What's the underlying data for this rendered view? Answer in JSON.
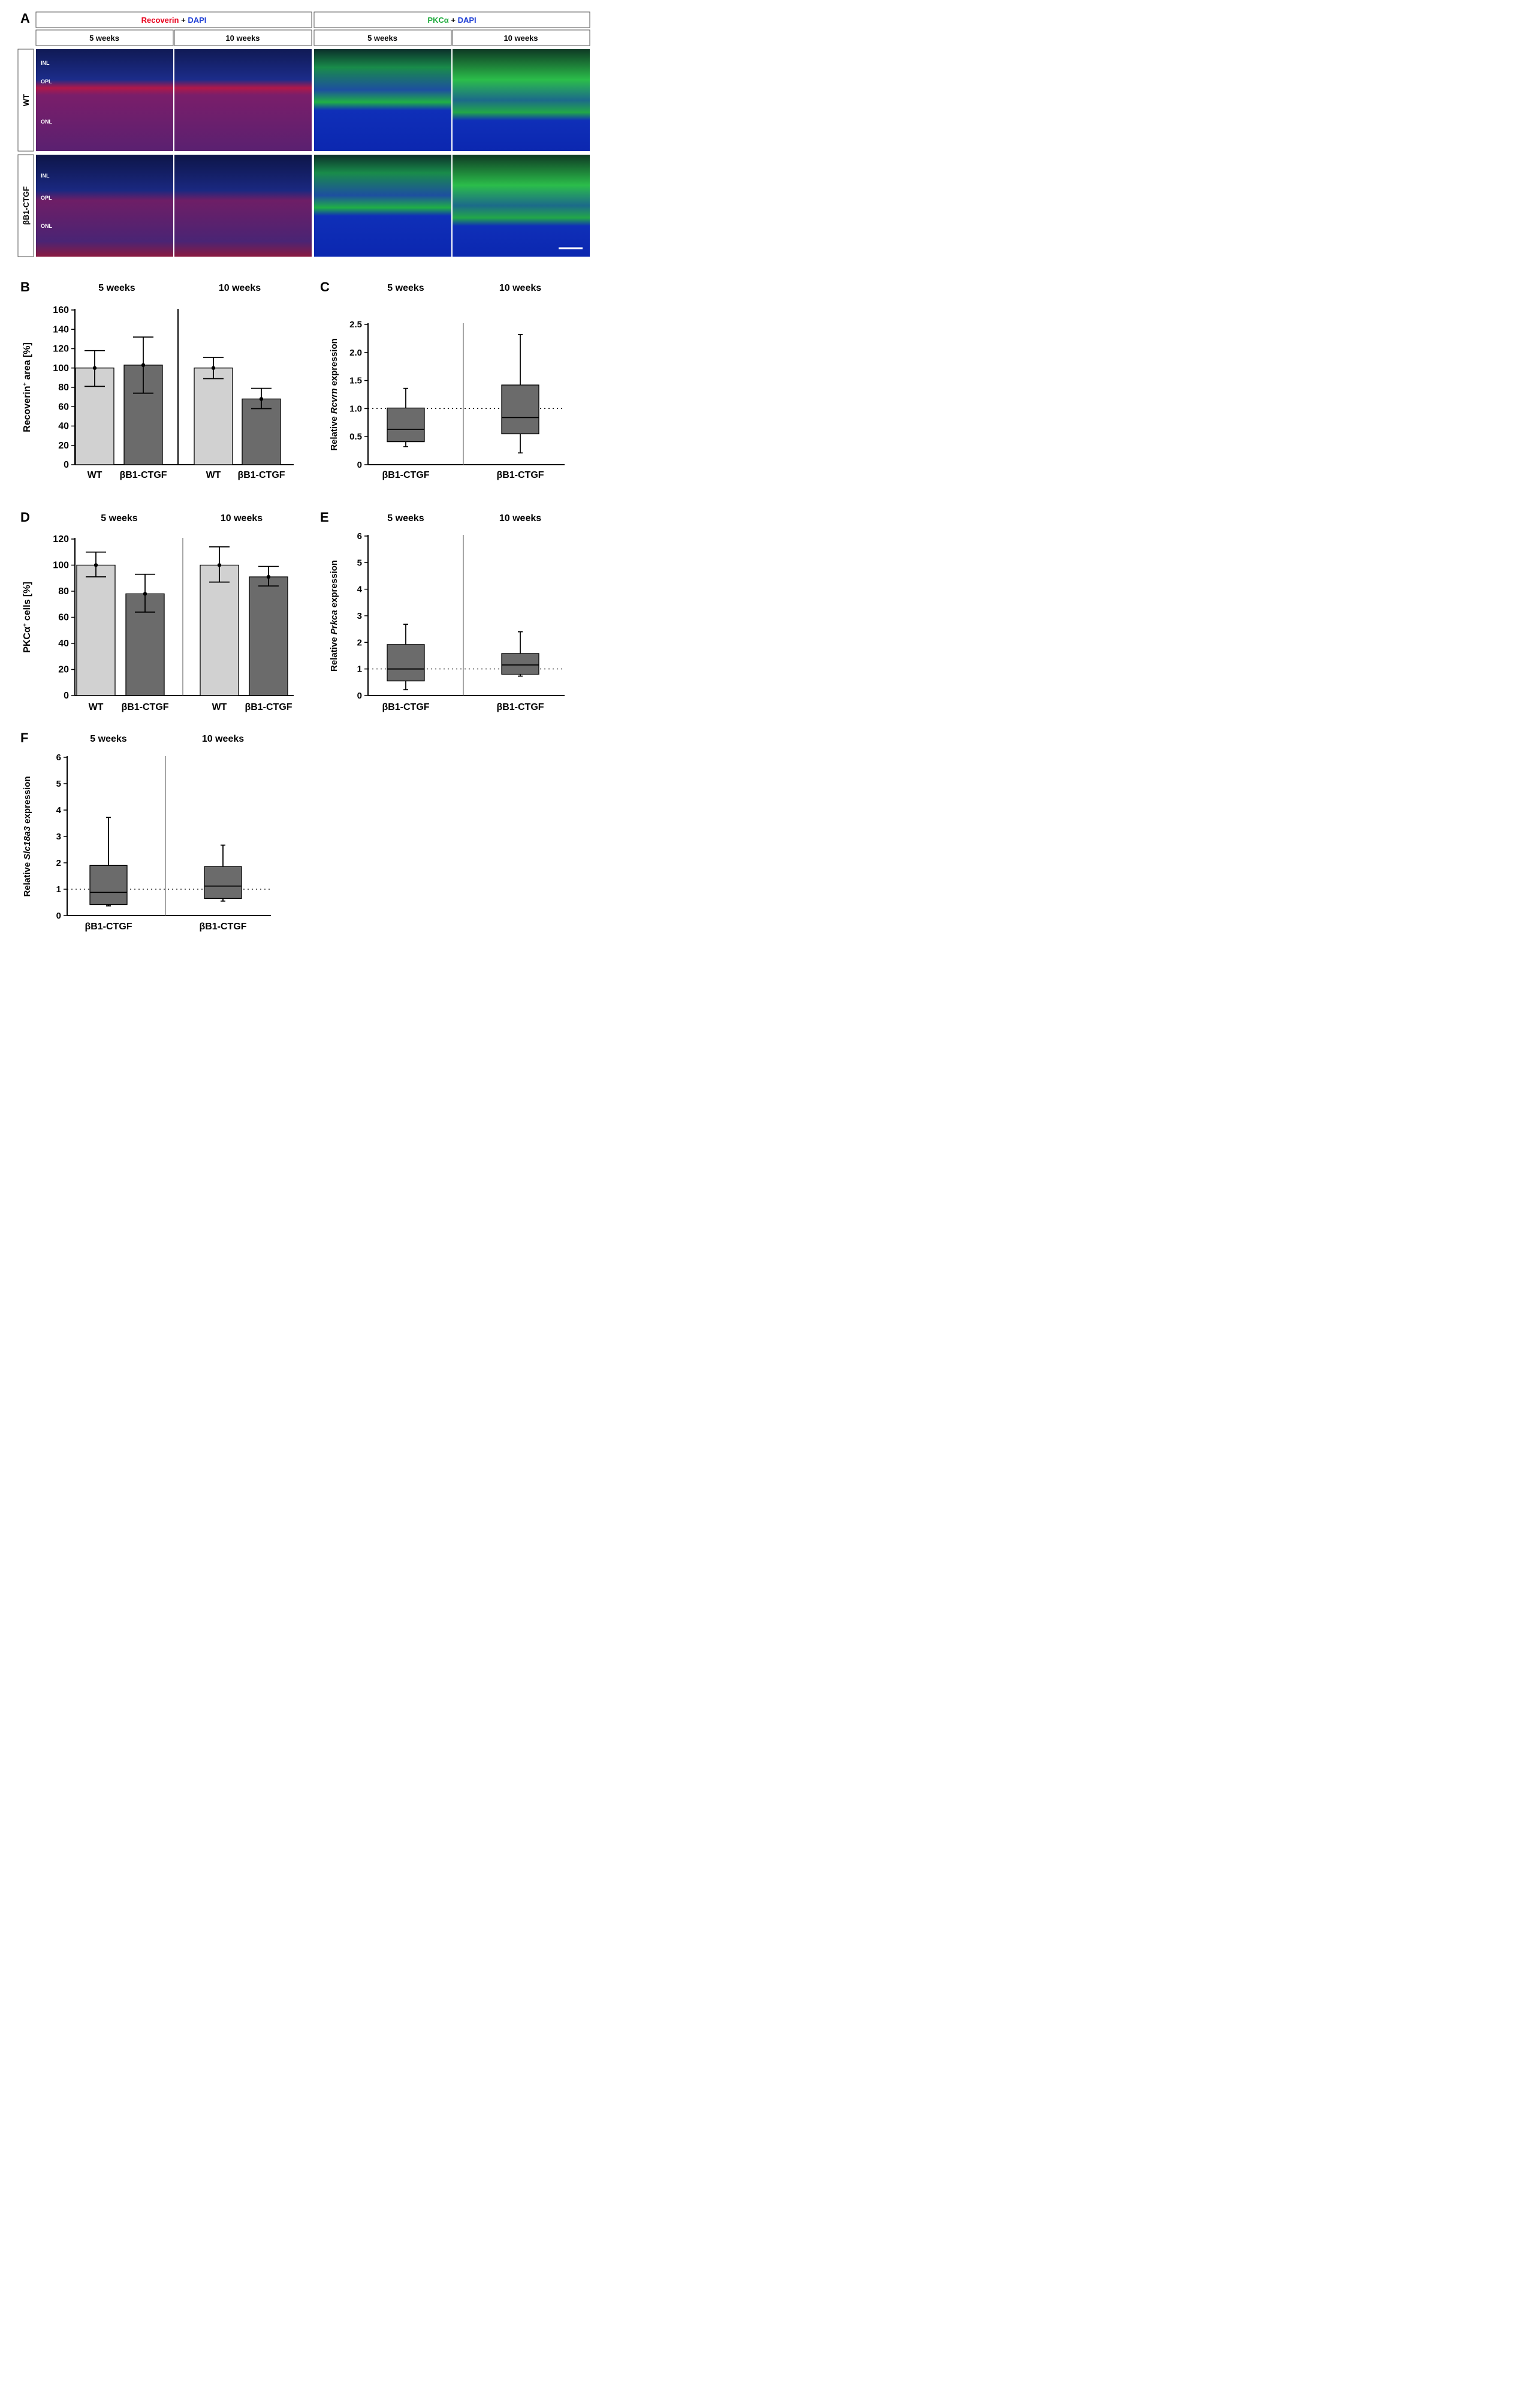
{
  "colors": {
    "recoverin": "#e8001c",
    "dapi": "#1f3fd6",
    "pkca": "#1eaa3c",
    "wt_bar": "#d1d1d1",
    "tg_bar": "#6b6b6b",
    "box": "#6b6b6b"
  },
  "panel_a": {
    "letter": "A",
    "stain_left": {
      "marker": "Recoverin",
      "plus": " + ",
      "dapi": "DAPI"
    },
    "stain_right": {
      "marker": "PKCα",
      "plus": " + ",
      "dapi": "DAPI"
    },
    "timepoints": [
      "5 weeks",
      "10 weeks",
      "5 weeks",
      "10 weeks"
    ],
    "rows": [
      "WT",
      "βB1-CTGF"
    ],
    "layer_labels": {
      "row1": [
        "INL",
        "OPL",
        "ONL"
      ],
      "row2": [
        "INL",
        "OPL",
        "ONL"
      ]
    },
    "scale_bar": true
  },
  "chart_data": [
    {
      "id": "B",
      "type": "bar",
      "letter": "B",
      "groups": [
        "5 weeks",
        "10 weeks"
      ],
      "categories": [
        "WT",
        "βB1-CTGF",
        "WT",
        "βB1-CTGF"
      ],
      "ylabel": {
        "pre": "Recoverin",
        "sup": "+",
        "post": " area [%]"
      },
      "ylim": [
        0,
        160
      ],
      "yticks": [
        0,
        20,
        40,
        60,
        80,
        100,
        120,
        140,
        160
      ],
      "series": [
        {
          "values": [
            100,
            103,
            100,
            68
          ],
          "error_low": [
            81,
            74,
            89,
            58
          ],
          "error_high": [
            118,
            132,
            111,
            79
          ]
        }
      ]
    },
    {
      "id": "C",
      "type": "box",
      "letter": "C",
      "groups": [
        "5 weeks",
        "10 weeks"
      ],
      "categories": [
        "βB1-CTGF",
        "βB1-CTGF"
      ],
      "ylabel": {
        "pre": "Relative ",
        "gene": "Rcvrn",
        "post": " expression"
      },
      "ylim": [
        0,
        2.5
      ],
      "yticks": [
        "0",
        "0.5",
        "1.0",
        "1.5",
        "2.0",
        "2.5"
      ],
      "reference_line": 1,
      "boxes": [
        {
          "min": 0.32,
          "q1": 0.41,
          "median": 0.63,
          "q3": 1.01,
          "max": 1.36
        },
        {
          "min": 0.21,
          "q1": 0.55,
          "median": 0.84,
          "q3": 1.42,
          "max": 2.32
        }
      ]
    },
    {
      "id": "D",
      "type": "bar",
      "letter": "D",
      "groups": [
        "5 weeks",
        "10 weeks"
      ],
      "categories": [
        "WT",
        "βB1-CTGF",
        "WT",
        "βB1-CTGF"
      ],
      "ylabel": {
        "pre": "PKCα",
        "sup": "+",
        "post": " cells [%]"
      },
      "ylim": [
        0,
        120
      ],
      "yticks": [
        0,
        20,
        40,
        60,
        80,
        100,
        120
      ],
      "series": [
        {
          "values": [
            100,
            78,
            100,
            91
          ],
          "error_low": [
            91,
            64,
            87,
            84
          ],
          "error_high": [
            110,
            93,
            114,
            99
          ]
        }
      ]
    },
    {
      "id": "E",
      "type": "box",
      "letter": "E",
      "groups": [
        "5 weeks",
        "10 weeks"
      ],
      "categories": [
        "βB1-CTGF",
        "βB1-CTGF"
      ],
      "ylabel": {
        "pre": "Relative ",
        "gene": "Prkca",
        "post": " expression"
      },
      "ylim": [
        0,
        6
      ],
      "yticks": [
        "0",
        "1",
        "2",
        "3",
        "4",
        "5",
        "6"
      ],
      "reference_line": 1,
      "boxes": [
        {
          "min": 0.22,
          "q1": 0.55,
          "median": 1.0,
          "q3": 1.92,
          "max": 2.68
        },
        {
          "min": 0.73,
          "q1": 0.8,
          "median": 1.15,
          "q3": 1.58,
          "max": 2.4
        }
      ]
    },
    {
      "id": "F",
      "type": "box",
      "letter": "F",
      "groups": [
        "5 weeks",
        "10 weeks"
      ],
      "categories": [
        "βB1-CTGF",
        "βB1-CTGF"
      ],
      "ylabel": {
        "pre": "Relative ",
        "gene": "Slc18a3",
        "post": " expression"
      },
      "ylim": [
        0,
        6
      ],
      "yticks": [
        "0",
        "1",
        "2",
        "3",
        "4",
        "5",
        "6"
      ],
      "reference_line": 1,
      "boxes": [
        {
          "min": 0.37,
          "q1": 0.42,
          "median": 0.88,
          "q3": 1.9,
          "max": 3.72
        },
        {
          "min": 0.55,
          "q1": 0.65,
          "median": 1.12,
          "q3": 1.86,
          "max": 2.67
        }
      ]
    }
  ]
}
